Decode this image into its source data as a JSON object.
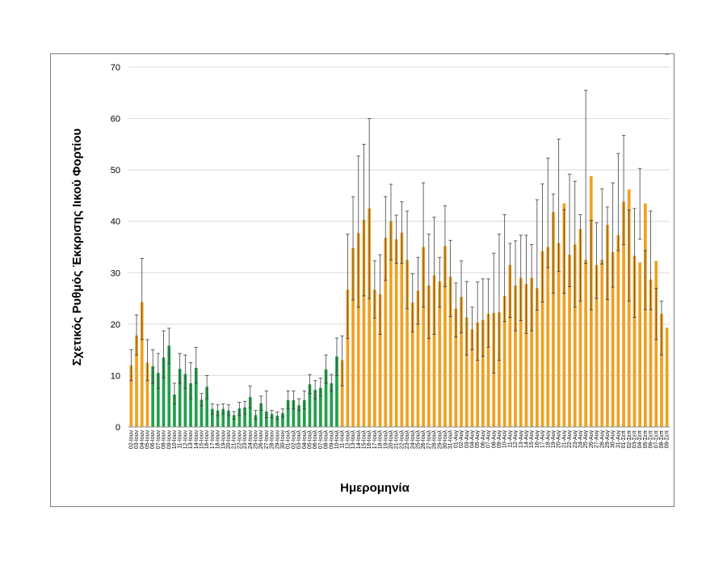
{
  "chart_data": {
    "type": "bar",
    "ylabel": "Σχετικός Ρυθμός Έκκρισης Ιικού Φορτίου",
    "xlabel": "Ημερομηνία",
    "ylim": [
      0,
      70
    ],
    "yticks": [
      0,
      10,
      20,
      30,
      40,
      50,
      60,
      70
    ],
    "grid": true,
    "legend": "none",
    "colors": {
      "orange": "#f0a020",
      "green": "#22a04a",
      "error": "#404040",
      "grid": "#d9d9d9"
    },
    "categories": [
      "02-Ιουν",
      "03-Ιουν",
      "04-Ιουν",
      "05-Ιουν",
      "06-Ιουν",
      "07-Ιουν",
      "08-Ιουν",
      "09-Ιουν",
      "10-Ιουν",
      "11-Ιουν",
      "12-Ιουν",
      "13-Ιουν",
      "14-Ιουν",
      "15-Ιουν",
      "16-Ιουν",
      "17-Ιουν",
      "18-Ιουν",
      "19-Ιουν",
      "20-Ιουν",
      "21-Ιουν",
      "22-Ιουν",
      "23-Ιουν",
      "24-Ιουν",
      "25-Ιουν",
      "26-Ιουν",
      "27-Ιουν",
      "28-Ιουν",
      "29-Ιουν",
      "30-Ιουν",
      "01-Ιουλ",
      "02-Ιουλ",
      "03-Ιουλ",
      "04-Ιουλ",
      "05-Ιουλ",
      "06-Ιουλ",
      "07-Ιουλ",
      "08-Ιουλ",
      "09-Ιουλ",
      "10-Ιουλ",
      "11-Ιουλ",
      "12-Ιουλ",
      "13-Ιουλ",
      "14-Ιουλ",
      "15-Ιουλ",
      "16-Ιουλ",
      "17-Ιουλ",
      "18-Ιουλ",
      "19-Ιουλ",
      "20-Ιουλ",
      "21-Ιουλ",
      "22-Ιουλ",
      "23-Ιουλ",
      "24-Ιουλ",
      "25-Ιουλ",
      "26-Ιουλ",
      "27-Ιουλ",
      "28-Ιουλ",
      "29-Ιουλ",
      "30-Ιουλ",
      "31-Ιουλ",
      "01-Αυγ",
      "02-Αυγ",
      "03-Αυγ",
      "04-Αυγ",
      "05-Αυγ",
      "06-Αυγ",
      "07-Αυγ",
      "08-Αυγ",
      "09-Αυγ",
      "10-Αυγ",
      "11-Αυγ",
      "12-Αυγ",
      "13-Αυγ",
      "14-Αυγ",
      "15-Αυγ",
      "16-Αυγ",
      "17-Αυγ",
      "18-Αυγ",
      "19-Αυγ",
      "20-Αυγ",
      "21-Αυγ",
      "22-Αυγ",
      "23-Αυγ",
      "24-Αυγ",
      "25-Αυγ",
      "26-Αυγ",
      "27-Αυγ",
      "28-Αυγ",
      "29-Αυγ",
      "30-Αυγ",
      "31-Αυγ",
      "01-Σεπ",
      "02-Σεπ",
      "03-Σεπ",
      "04-Σεπ",
      "05-Σεπ",
      "06-Σεπ",
      "07-Σεπ",
      "08-Σεπ",
      "09-Σεπ"
    ],
    "values": [
      12,
      17.8,
      24.3,
      12.5,
      11.8,
      10.5,
      13.5,
      15.8,
      6.3,
      11.3,
      10.3,
      8.5,
      11.5,
      5.3,
      7.8,
      3.5,
      3.2,
      3.5,
      3.2,
      2.3,
      3.6,
      3.8,
      5.8,
      2.3,
      4.6,
      3,
      2.5,
      2.2,
      2.7,
      5.2,
      5.2,
      4.2,
      5.2,
      8.3,
      7.2,
      7.6,
      11.2,
      8.5,
      13.7,
      13,
      26.7,
      34.8,
      37.7,
      40.3,
      42.5,
      26.7,
      25.8,
      36.8,
      40,
      36.5,
      37.8,
      32.5,
      24.2,
      26.5,
      35,
      27.5,
      29.5,
      28.3,
      35.2,
      29.2,
      23,
      25.3,
      21.3,
      19,
      20.3,
      20.8,
      22,
      22.2,
      22.3,
      25.5,
      31.5,
      27.5,
      29,
      27.8,
      29,
      27,
      34.2,
      35,
      41.8,
      35.8,
      43.5,
      33.5,
      35.5,
      38.5,
      32.5,
      48.8,
      31.5,
      32.5,
      39.3,
      34,
      37.3,
      43.8,
      46.2,
      33.3,
      32,
      43.5,
      28.7,
      32.3,
      22,
      19.3
    ],
    "error_high": [
      15,
      21.8,
      32.8,
      17,
      15,
      14.3,
      18.7,
      19.2,
      8.5,
      14.3,
      14,
      12.5,
      15.5,
      6.5,
      10,
      4.5,
      4.3,
      4.5,
      4.3,
      3,
      4.8,
      5,
      8,
      3.2,
      6,
      7,
      3.2,
      2.9,
      3.5,
      7,
      7,
      5.5,
      7,
      10.2,
      9,
      9.5,
      14,
      10.2,
      17.3,
      17.7,
      37.5,
      44.8,
      52.7,
      55,
      60,
      32.3,
      33.5,
      44.8,
      47.2,
      41.2,
      43.8,
      42,
      29.8,
      33,
      47.5,
      37.5,
      40.8,
      33,
      43,
      36.3,
      28,
      32.3,
      28.3,
      23.3,
      28.2,
      28.8,
      28.8,
      33.8,
      37.5,
      41.3,
      35.7,
      36.2,
      37.3,
      37.3,
      35.5,
      44.2,
      47.3,
      52.3,
      45.3,
      56,
      42.3,
      49.2,
      47.8,
      41.3,
      65.5,
      40.2,
      39.7,
      46.3,
      42.8,
      47.5,
      53.2,
      56.7,
      42.2,
      42.5,
      50.3,
      34.3,
      42,
      27,
      24.5
    ],
    "error_low": [
      9,
      14,
      17,
      9,
      8.5,
      7.5,
      9.5,
      12.3,
      4.5,
      8.5,
      7.5,
      5.5,
      8.5,
      4.2,
      5.5,
      2.5,
      2.2,
      2.5,
      2.2,
      1.5,
      2.3,
      2.5,
      3.7,
      1.5,
      3.2,
      1.8,
      1.8,
      1.5,
      1.9,
      3.5,
      3.5,
      3.2,
      3.5,
      6.5,
      5.5,
      6,
      8.5,
      7,
      10,
      8,
      17.2,
      24.7,
      23.3,
      25.5,
      25,
      21.2,
      18,
      28.5,
      32.5,
      31.8,
      31.8,
      23,
      18.5,
      20,
      23.3,
      17.2,
      18,
      23.3,
      27.3,
      21.5,
      17.5,
      18.3,
      14,
      15,
      13,
      13.7,
      15.5,
      10.5,
      13,
      20.5,
      21.3,
      18.7,
      20.7,
      18.2,
      18.7,
      22.7,
      24.3,
      31,
      26,
      30.3,
      26,
      27.3,
      23.3,
      24.5,
      31.8,
      22.8,
      25,
      31.7,
      24.8,
      27.2,
      34.3,
      35.5,
      24.5,
      21.3,
      36.5,
      22.8,
      22.8,
      17,
      14
    ],
    "bar_colors": [
      "orange",
      "orange",
      "orange",
      "orange",
      "green",
      "green",
      "green",
      "green",
      "green",
      "green",
      "green",
      "green",
      "green",
      "green",
      "green",
      "green",
      "green",
      "green",
      "green",
      "green",
      "green",
      "green",
      "green",
      "green",
      "green",
      "green",
      "green",
      "green",
      "green",
      "green",
      "green",
      "green",
      "green",
      "green",
      "green",
      "green",
      "green",
      "green",
      "green",
      "orange",
      "orange",
      "orange",
      "orange",
      "orange",
      "orange",
      "orange",
      "orange",
      "orange",
      "orange",
      "orange",
      "orange",
      "orange",
      "orange",
      "orange",
      "orange",
      "orange",
      "orange",
      "orange",
      "orange",
      "orange",
      "orange",
      "orange",
      "orange",
      "orange",
      "orange",
      "orange",
      "orange",
      "orange",
      "orange",
      "orange",
      "orange",
      "orange",
      "orange",
      "orange",
      "orange",
      "orange",
      "orange",
      "orange",
      "orange",
      "orange",
      "orange",
      "orange",
      "orange",
      "orange",
      "orange",
      "orange",
      "orange",
      "orange",
      "orange",
      "orange",
      "orange",
      "orange",
      "orange",
      "orange",
      "orange",
      "orange",
      "orange",
      "orange",
      "orange",
      "orange"
    ]
  }
}
